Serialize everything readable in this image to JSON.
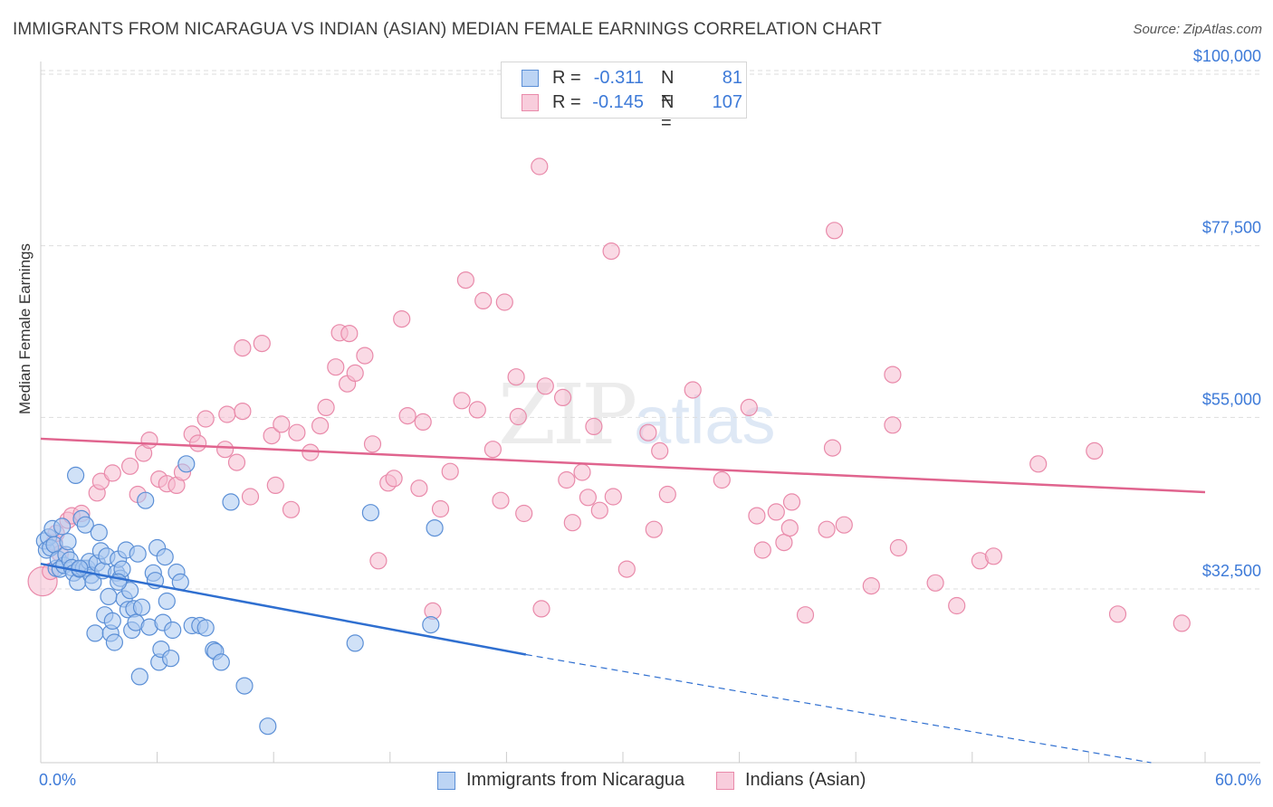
{
  "title": "IMMIGRANTS FROM NICARAGUA VS INDIAN (ASIAN) MEDIAN FEMALE EARNINGS CORRELATION CHART",
  "source": "Source: ZipAtlas.com",
  "watermark": {
    "part1": "ZIP",
    "part2": "atlas"
  },
  "legend_top": {
    "rows": [
      {
        "r_label": "R =",
        "r_value": "-0.311",
        "n_label": "N =",
        "n_value": "81"
      },
      {
        "r_label": "R =",
        "r_value": "-0.145",
        "n_label": "N =",
        "n_value": "107"
      }
    ]
  },
  "legend_bottom": {
    "series1": "Immigrants from Nicaragua",
    "series2": "Indians (Asian)"
  },
  "colors": {
    "blue_fill": "#a9c8f0",
    "blue_stroke": "#5b8fd6",
    "blue_line": "#2f6fd0",
    "pink_fill": "#f6bcd0",
    "pink_stroke": "#e98aaa",
    "pink_line": "#e0648e",
    "grid": "#dddddd",
    "tick_text": "#3d7ad8"
  },
  "chart_data": {
    "type": "scatter",
    "title": "IMMIGRANTS FROM NICARAGUA VS INDIAN (ASIAN) MEDIAN FEMALE EARNINGS CORRELATION CHART",
    "xlabel": "",
    "ylabel": "Median Female Earnings",
    "x_tick_labels": [
      "0.0%",
      "60.0%"
    ],
    "xlim": [
      0,
      60
    ],
    "ylim": [
      10000,
      104000
    ],
    "y_ticks": [
      {
        "value": 32500,
        "label": "$32,500"
      },
      {
        "value": 55000,
        "label": "$55,000"
      },
      {
        "value": 77500,
        "label": "$77,500"
      },
      {
        "value": 100000,
        "label": "$100,000"
      }
    ],
    "series": [
      {
        "name": "Immigrants from Nicaragua",
        "r": -0.311,
        "n": 81,
        "trend": {
          "x0": 0,
          "y0": 35800,
          "x1": 25,
          "y1": 23900,
          "dash_x1": 60,
          "dash_y1": 8500
        },
        "points": [
          [
            0.2,
            38800
          ],
          [
            0.3,
            37600
          ],
          [
            0.4,
            39300
          ],
          [
            0.5,
            37900
          ],
          [
            0.6,
            40400
          ],
          [
            0.7,
            38300
          ],
          [
            0.8,
            35200
          ],
          [
            0.9,
            36400
          ],
          [
            1.0,
            35100
          ],
          [
            1.1,
            40700
          ],
          [
            1.2,
            35600
          ],
          [
            1.3,
            37000
          ],
          [
            1.4,
            38700
          ],
          [
            1.5,
            36300
          ],
          [
            1.6,
            35300
          ],
          [
            1.7,
            34600
          ],
          [
            1.8,
            47400
          ],
          [
            1.9,
            33400
          ],
          [
            2.0,
            35100
          ],
          [
            2.1,
            41700
          ],
          [
            2.2,
            35200
          ],
          [
            2.3,
            40900
          ],
          [
            2.4,
            35200
          ],
          [
            2.5,
            36100
          ],
          [
            2.6,
            34300
          ],
          [
            2.7,
            33400
          ],
          [
            2.8,
            26700
          ],
          [
            2.9,
            35900
          ],
          [
            3.0,
            39900
          ],
          [
            3.1,
            37500
          ],
          [
            3.2,
            34900
          ],
          [
            3.3,
            29100
          ],
          [
            3.4,
            36800
          ],
          [
            3.5,
            31500
          ],
          [
            3.6,
            26700
          ],
          [
            3.7,
            28300
          ],
          [
            3.8,
            25500
          ],
          [
            3.9,
            34600
          ],
          [
            4.0,
            36400
          ],
          [
            4.1,
            33900
          ],
          [
            4.2,
            35100
          ],
          [
            4.3,
            31200
          ],
          [
            4.4,
            37600
          ],
          [
            4.5,
            29800
          ],
          [
            4.6,
            32300
          ],
          [
            4.7,
            27100
          ],
          [
            4.8,
            29900
          ],
          [
            4.9,
            28100
          ],
          [
            5.0,
            37100
          ],
          [
            5.1,
            21000
          ],
          [
            5.2,
            30100
          ],
          [
            5.4,
            44100
          ],
          [
            5.6,
            27500
          ],
          [
            5.8,
            34600
          ],
          [
            5.9,
            33600
          ],
          [
            6.0,
            37900
          ],
          [
            6.1,
            22900
          ],
          [
            6.2,
            24600
          ],
          [
            6.3,
            28100
          ],
          [
            6.5,
            30900
          ],
          [
            6.7,
            23400
          ],
          [
            6.8,
            27100
          ],
          [
            7.0,
            34700
          ],
          [
            7.2,
            33400
          ],
          [
            7.5,
            48900
          ],
          [
            7.8,
            27700
          ],
          [
            8.2,
            27700
          ],
          [
            8.5,
            27400
          ],
          [
            8.9,
            24500
          ],
          [
            9.0,
            24300
          ],
          [
            9.3,
            22900
          ],
          [
            9.8,
            43900
          ],
          [
            10.5,
            19800
          ],
          [
            11.7,
            14500
          ],
          [
            17.0,
            42500
          ],
          [
            20.1,
            27800
          ],
          [
            20.3,
            40500
          ],
          [
            16.2,
            25400
          ],
          [
            6.4,
            36700
          ],
          [
            4.0,
            33400
          ],
          [
            2.0,
            35200
          ]
        ]
      },
      {
        "name": "Indians (Asian)",
        "r": -0.145,
        "n": 107,
        "trend": {
          "x0": 0,
          "y0": 52200,
          "x1": 60,
          "y1": 45200
        },
        "points": [
          [
            0.1,
            33500
          ],
          [
            0.5,
            34800
          ],
          [
            0.7,
            38600
          ],
          [
            0.8,
            39800
          ],
          [
            1.0,
            37100
          ],
          [
            1.4,
            41500
          ],
          [
            1.6,
            42100
          ],
          [
            2.1,
            42400
          ],
          [
            2.9,
            45100
          ],
          [
            3.1,
            46600
          ],
          [
            3.7,
            47700
          ],
          [
            4.6,
            48600
          ],
          [
            5.0,
            44900
          ],
          [
            5.3,
            50300
          ],
          [
            5.6,
            52000
          ],
          [
            6.1,
            46900
          ],
          [
            6.5,
            46300
          ],
          [
            7.0,
            46100
          ],
          [
            7.3,
            47800
          ],
          [
            7.8,
            52800
          ],
          [
            8.1,
            51600
          ],
          [
            8.5,
            54800
          ],
          [
            9.5,
            50800
          ],
          [
            9.6,
            55400
          ],
          [
            10.1,
            49100
          ],
          [
            10.4,
            55800
          ],
          [
            10.8,
            44600
          ],
          [
            10.4,
            64100
          ],
          [
            11.4,
            64700
          ],
          [
            11.9,
            52600
          ],
          [
            12.1,
            46100
          ],
          [
            12.4,
            54100
          ],
          [
            12.9,
            42900
          ],
          [
            13.2,
            53000
          ],
          [
            13.9,
            50400
          ],
          [
            14.4,
            53900
          ],
          [
            14.7,
            56300
          ],
          [
            15.2,
            61600
          ],
          [
            15.4,
            66100
          ],
          [
            15.8,
            59400
          ],
          [
            15.9,
            66000
          ],
          [
            16.2,
            60800
          ],
          [
            16.7,
            63100
          ],
          [
            17.1,
            51500
          ],
          [
            17.4,
            36200
          ],
          [
            17.9,
            46400
          ],
          [
            18.2,
            47000
          ],
          [
            18.6,
            67900
          ],
          [
            18.9,
            55200
          ],
          [
            19.5,
            45700
          ],
          [
            19.7,
            54400
          ],
          [
            20.2,
            29600
          ],
          [
            20.6,
            43000
          ],
          [
            21.1,
            47900
          ],
          [
            21.7,
            57200
          ],
          [
            21.9,
            73000
          ],
          [
            22.5,
            56000
          ],
          [
            22.8,
            70300
          ],
          [
            23.3,
            50800
          ],
          [
            23.7,
            44100
          ],
          [
            23.9,
            70100
          ],
          [
            24.5,
            60300
          ],
          [
            24.6,
            55100
          ],
          [
            24.9,
            42400
          ],
          [
            25.7,
            87900
          ],
          [
            25.8,
            29900
          ],
          [
            26.0,
            59100
          ],
          [
            26.9,
            57600
          ],
          [
            27.1,
            46800
          ],
          [
            27.4,
            41200
          ],
          [
            27.9,
            47800
          ],
          [
            28.2,
            44500
          ],
          [
            28.5,
            53800
          ],
          [
            28.8,
            42800
          ],
          [
            29.4,
            76800
          ],
          [
            30.2,
            35100
          ],
          [
            31.3,
            53000
          ],
          [
            31.6,
            40300
          ],
          [
            31.9,
            50600
          ],
          [
            32.3,
            44900
          ],
          [
            33.6,
            58600
          ],
          [
            35.1,
            46800
          ],
          [
            36.5,
            56300
          ],
          [
            36.9,
            42100
          ],
          [
            37.2,
            37600
          ],
          [
            37.9,
            42600
          ],
          [
            38.3,
            38600
          ],
          [
            38.7,
            43900
          ],
          [
            38.6,
            40500
          ],
          [
            39.4,
            29100
          ],
          [
            40.5,
            40300
          ],
          [
            40.8,
            51000
          ],
          [
            40.9,
            79500
          ],
          [
            41.4,
            40900
          ],
          [
            42.8,
            32900
          ],
          [
            43.9,
            54000
          ],
          [
            43.9,
            60600
          ],
          [
            44.2,
            37900
          ],
          [
            46.1,
            33300
          ],
          [
            47.2,
            30300
          ],
          [
            48.4,
            36200
          ],
          [
            49.1,
            36800
          ],
          [
            51.4,
            48900
          ],
          [
            54.3,
            50600
          ],
          [
            55.5,
            29200
          ],
          [
            58.8,
            28000
          ],
          [
            29.5,
            44600
          ]
        ]
      }
    ]
  }
}
